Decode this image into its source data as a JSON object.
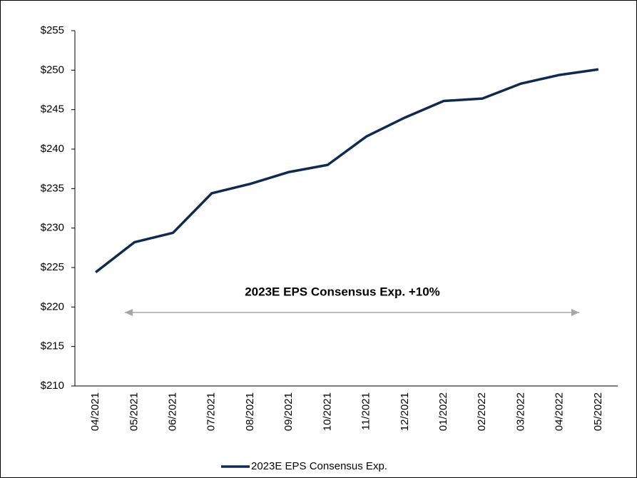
{
  "chart_data": {
    "type": "line",
    "categories": [
      "04/2021",
      "05/2021",
      "06/2021",
      "07/2021",
      "08/2021",
      "09/2021",
      "10/2021",
      "11/2021",
      "12/2021",
      "01/2022",
      "02/2022",
      "03/2022",
      "04/2022",
      "05/2022"
    ],
    "series": [
      {
        "name": "2023E EPS Consensus Exp.",
        "color": "#0e2a50",
        "values": [
          224.4,
          228.2,
          229.4,
          234.4,
          235.6,
          237.1,
          238.0,
          241.6,
          244.0,
          246.1,
          246.4,
          248.3,
          249.4,
          250.1
        ]
      }
    ],
    "ylim": [
      210,
      255
    ],
    "yticks": [
      {
        "value": 210,
        "label": "$210"
      },
      {
        "value": 215,
        "label": "$215"
      },
      {
        "value": 220,
        "label": "$220"
      },
      {
        "value": 225,
        "label": "$225"
      },
      {
        "value": 230,
        "label": "$230"
      },
      {
        "value": 235,
        "label": "$235"
      },
      {
        "value": 240,
        "label": "$240"
      },
      {
        "value": 245,
        "label": "$245"
      },
      {
        "value": 250,
        "label": "$250"
      },
      {
        "value": 255,
        "label": "$255"
      }
    ],
    "annotation": "2023E EPS Consensus Exp. +10%",
    "grid": false,
    "legend": "bottom"
  }
}
